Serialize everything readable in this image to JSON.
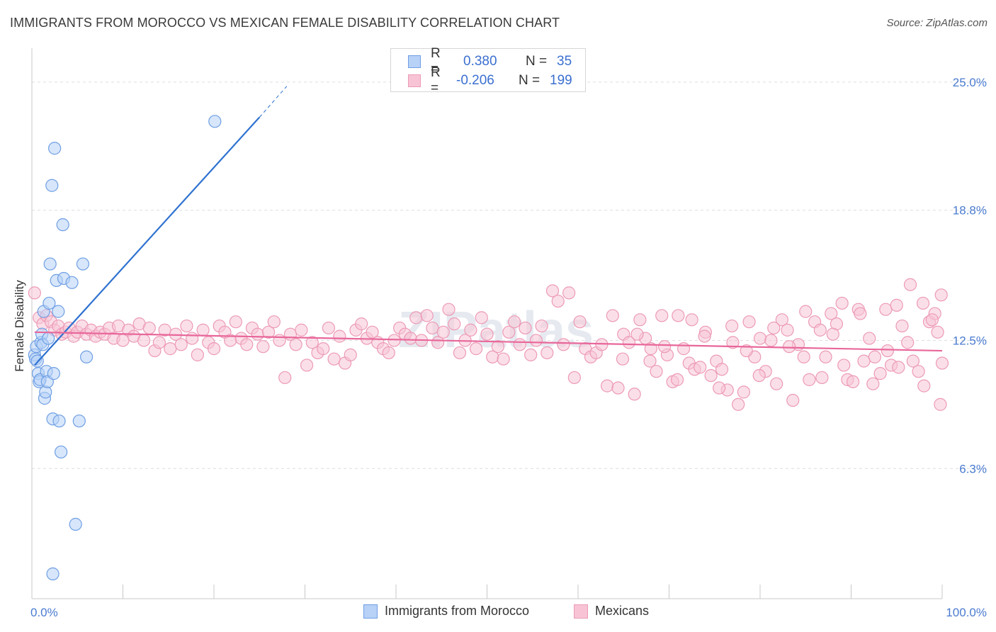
{
  "title": "IMMIGRANTS FROM MOROCCO VS MEXICAN FEMALE DISABILITY CORRELATION CHART",
  "source": "Source: ZipAtlas.com",
  "watermark": "ZIPatlas",
  "legend": {
    "rows": [
      {
        "r_label": "R =",
        "r_value": "0.380",
        "n_label": "N =",
        "n_value": "35"
      },
      {
        "r_label": "R =",
        "r_value": "-0.206",
        "n_label": "N =",
        "n_value": "199"
      }
    ]
  },
  "bottom_legend": {
    "series1": "Immigrants from Morocco",
    "series2": "Mexicans"
  },
  "colors": {
    "blue_fill": "#b7d1f7",
    "blue_stroke": "#6f9fe3",
    "blue_line": "#2f72d0",
    "pink_fill": "#f8c4d5",
    "pink_stroke": "#ec9ab6",
    "pink_line": "#e8679a",
    "tick_text": "#4a7bd0",
    "grid": "#dedede"
  },
  "chart_data": {
    "type": "scatter",
    "title": "IMMIGRANTS FROM MOROCCO VS MEXICAN FEMALE DISABILITY CORRELATION CHART",
    "xlabel": "",
    "ylabel": "Female Disability",
    "xlim": [
      0,
      100
    ],
    "ylim": [
      0,
      26.3
    ],
    "y_ticks": [
      6.3,
      12.5,
      18.8,
      25.0
    ],
    "y_tick_labels": [
      "6.3%",
      "12.5%",
      "18.8%",
      "25.0%"
    ],
    "x_tick_labels": [
      "0.0%",
      "100.0%"
    ],
    "grid": true,
    "series": [
      {
        "name": "Immigrants from Morocco",
        "R": 0.38,
        "N": 35,
        "trend": {
          "x0": 0.3,
          "y0": 11.3,
          "x1": 25.0,
          "y1": 23.3,
          "dash_to_x": 28.0,
          "dash_to_y": 24.8
        },
        "points": [
          [
            0.3,
            11.8
          ],
          [
            0.4,
            11.6
          ],
          [
            0.5,
            12.2
          ],
          [
            0.6,
            11.5
          ],
          [
            0.7,
            10.9
          ],
          [
            0.8,
            10.5
          ],
          [
            0.9,
            10.6
          ],
          [
            1.0,
            12.4
          ],
          [
            1.1,
            12.8
          ],
          [
            1.2,
            12.3
          ],
          [
            1.3,
            13.9
          ],
          [
            1.4,
            9.7
          ],
          [
            1.5,
            10.0
          ],
          [
            1.6,
            11.0
          ],
          [
            1.7,
            10.5
          ],
          [
            1.8,
            12.6
          ],
          [
            1.9,
            14.3
          ],
          [
            2.0,
            16.2
          ],
          [
            2.2,
            20.0
          ],
          [
            2.3,
            8.7
          ],
          [
            2.4,
            10.9
          ],
          [
            2.5,
            21.8
          ],
          [
            2.7,
            15.4
          ],
          [
            2.9,
            13.9
          ],
          [
            3.0,
            8.6
          ],
          [
            3.2,
            7.1
          ],
          [
            3.4,
            18.1
          ],
          [
            3.5,
            15.5
          ],
          [
            4.4,
            15.3
          ],
          [
            4.8,
            3.6
          ],
          [
            5.2,
            8.6
          ],
          [
            5.6,
            16.2
          ],
          [
            6.0,
            11.7
          ],
          [
            2.3,
            1.2
          ],
          [
            20.1,
            23.1
          ]
        ]
      },
      {
        "name": "Mexicans",
        "R": -0.206,
        "N": 199,
        "trend": {
          "x0": 0.3,
          "y0": 12.9,
          "x1": 100,
          "y1": 12.0
        },
        "points": [
          [
            0.3,
            14.8
          ],
          [
            0.8,
            13.6
          ],
          [
            1.2,
            13.3
          ],
          [
            1.6,
            13.7
          ],
          [
            2.1,
            13.4
          ],
          [
            2.5,
            13.0
          ],
          [
            2.9,
            13.2
          ],
          [
            3.3,
            12.8
          ],
          [
            3.7,
            12.9
          ],
          [
            4.1,
            13.1
          ],
          [
            4.6,
            12.7
          ],
          [
            5.0,
            12.9
          ],
          [
            5.5,
            13.2
          ],
          [
            6.0,
            12.8
          ],
          [
            6.5,
            13.0
          ],
          [
            7.0,
            12.7
          ],
          [
            7.5,
            12.9
          ],
          [
            8.0,
            12.8
          ],
          [
            8.5,
            13.1
          ],
          [
            9.0,
            12.6
          ],
          [
            9.5,
            13.2
          ],
          [
            10.0,
            12.5
          ],
          [
            10.6,
            13.0
          ],
          [
            11.2,
            12.7
          ],
          [
            11.8,
            13.3
          ],
          [
            12.3,
            12.5
          ],
          [
            12.9,
            13.1
          ],
          [
            13.5,
            12.0
          ],
          [
            14.0,
            12.4
          ],
          [
            14.6,
            13.0
          ],
          [
            15.2,
            12.1
          ],
          [
            15.8,
            12.8
          ],
          [
            16.4,
            12.3
          ],
          [
            17.0,
            13.2
          ],
          [
            17.6,
            12.6
          ],
          [
            18.2,
            11.8
          ],
          [
            18.8,
            13.0
          ],
          [
            19.4,
            12.4
          ],
          [
            20.0,
            12.1
          ],
          [
            20.6,
            13.2
          ],
          [
            21.2,
            12.9
          ],
          [
            21.8,
            12.5
          ],
          [
            22.4,
            13.4
          ],
          [
            23.0,
            12.6
          ],
          [
            23.6,
            12.3
          ],
          [
            24.2,
            13.1
          ],
          [
            24.8,
            12.8
          ],
          [
            25.4,
            12.2
          ],
          [
            26.0,
            12.9
          ],
          [
            26.6,
            13.4
          ],
          [
            27.2,
            12.5
          ],
          [
            27.8,
            10.7
          ],
          [
            28.4,
            12.8
          ],
          [
            29.0,
            12.3
          ],
          [
            29.6,
            13.0
          ],
          [
            30.2,
            11.3
          ],
          [
            30.8,
            12.4
          ],
          [
            31.4,
            11.9
          ],
          [
            32.0,
            12.1
          ],
          [
            32.6,
            13.1
          ],
          [
            33.2,
            11.6
          ],
          [
            33.8,
            12.7
          ],
          [
            34.4,
            11.4
          ],
          [
            35.0,
            11.8
          ],
          [
            35.6,
            13.0
          ],
          [
            36.2,
            13.3
          ],
          [
            36.8,
            12.6
          ],
          [
            37.4,
            12.9
          ],
          [
            38.0,
            12.4
          ],
          [
            38.6,
            12.1
          ],
          [
            39.2,
            11.9
          ],
          [
            39.8,
            12.5
          ],
          [
            40.4,
            13.1
          ],
          [
            41.0,
            12.8
          ],
          [
            41.6,
            12.6
          ],
          [
            42.2,
            13.6
          ],
          [
            42.8,
            12.5
          ],
          [
            43.4,
            13.7
          ],
          [
            44.0,
            13.1
          ],
          [
            44.6,
            12.4
          ],
          [
            45.2,
            12.9
          ],
          [
            45.8,
            14.0
          ],
          [
            46.4,
            13.3
          ],
          [
            47.0,
            11.9
          ],
          [
            47.6,
            12.5
          ],
          [
            48.2,
            13.0
          ],
          [
            48.8,
            12.1
          ],
          [
            49.4,
            13.6
          ],
          [
            50.0,
            12.8
          ],
          [
            50.6,
            11.7
          ],
          [
            51.2,
            12.2
          ],
          [
            51.8,
            11.6
          ],
          [
            52.4,
            12.9
          ],
          [
            53.0,
            13.4
          ],
          [
            53.6,
            12.3
          ],
          [
            54.2,
            13.1
          ],
          [
            54.8,
            11.8
          ],
          [
            55.4,
            12.5
          ],
          [
            56.0,
            13.2
          ],
          [
            56.6,
            11.9
          ],
          [
            57.2,
            14.9
          ],
          [
            57.8,
            14.4
          ],
          [
            58.4,
            12.3
          ],
          [
            59.0,
            14.8
          ],
          [
            59.6,
            10.7
          ],
          [
            60.2,
            13.4
          ],
          [
            60.8,
            12.1
          ],
          [
            61.4,
            11.7
          ],
          [
            62.0,
            11.9
          ],
          [
            62.6,
            12.3
          ],
          [
            63.2,
            10.3
          ],
          [
            63.8,
            13.7
          ],
          [
            64.4,
            10.2
          ],
          [
            65.0,
            12.8
          ],
          [
            65.6,
            12.4
          ],
          [
            66.2,
            9.9
          ],
          [
            66.8,
            13.5
          ],
          [
            67.4,
            12.6
          ],
          [
            68.0,
            12.1
          ],
          [
            68.6,
            11.0
          ],
          [
            69.2,
            13.7
          ],
          [
            69.8,
            11.8
          ],
          [
            70.4,
            10.5
          ],
          [
            71.0,
            13.7
          ],
          [
            71.6,
            12.1
          ],
          [
            72.2,
            11.4
          ],
          [
            72.8,
            11.1
          ],
          [
            73.4,
            11.2
          ],
          [
            74.0,
            12.9
          ],
          [
            74.6,
            10.8
          ],
          [
            75.2,
            11.5
          ],
          [
            75.8,
            11.1
          ],
          [
            76.4,
            10.1
          ],
          [
            77.0,
            12.4
          ],
          [
            77.6,
            9.4
          ],
          [
            78.2,
            10.0
          ],
          [
            78.8,
            13.4
          ],
          [
            79.4,
            11.7
          ],
          [
            80.0,
            12.6
          ],
          [
            80.6,
            11.0
          ],
          [
            81.2,
            12.5
          ],
          [
            81.8,
            10.4
          ],
          [
            82.4,
            13.5
          ],
          [
            83.0,
            13.0
          ],
          [
            83.6,
            9.6
          ],
          [
            84.2,
            12.3
          ],
          [
            84.8,
            11.7
          ],
          [
            85.4,
            10.6
          ],
          [
            86.0,
            13.4
          ],
          [
            86.6,
            13.0
          ],
          [
            87.2,
            11.7
          ],
          [
            87.8,
            13.8
          ],
          [
            88.4,
            13.3
          ],
          [
            89.0,
            14.3
          ],
          [
            89.6,
            10.6
          ],
          [
            90.2,
            10.5
          ],
          [
            90.8,
            14.0
          ],
          [
            91.4,
            11.5
          ],
          [
            92.0,
            12.6
          ],
          [
            92.6,
            11.7
          ],
          [
            93.2,
            10.9
          ],
          [
            93.8,
            14.0
          ],
          [
            94.4,
            11.3
          ],
          [
            95.0,
            14.2
          ],
          [
            95.6,
            13.2
          ],
          [
            96.2,
            12.4
          ],
          [
            96.8,
            11.5
          ],
          [
            97.4,
            11.0
          ],
          [
            98.0,
            10.3
          ],
          [
            98.6,
            13.4
          ],
          [
            99.2,
            13.8
          ],
          [
            99.8,
            9.4
          ],
          [
            100.0,
            11.4
          ],
          [
            96.5,
            15.2
          ],
          [
            97.9,
            14.3
          ],
          [
            98.9,
            13.5
          ],
          [
            99.5,
            12.9
          ],
          [
            99.9,
            14.7
          ],
          [
            95.2,
            11.2
          ],
          [
            94.0,
            12.0
          ],
          [
            92.4,
            10.4
          ],
          [
            91.0,
            13.8
          ],
          [
            89.2,
            11.3
          ],
          [
            88.0,
            12.8
          ],
          [
            86.8,
            10.7
          ],
          [
            85.0,
            13.9
          ],
          [
            83.2,
            12.2
          ],
          [
            81.5,
            13.1
          ],
          [
            79.9,
            10.8
          ],
          [
            78.5,
            12.0
          ],
          [
            76.9,
            13.2
          ],
          [
            75.5,
            10.2
          ],
          [
            73.9,
            12.7
          ],
          [
            72.5,
            13.5
          ],
          [
            70.9,
            10.6
          ],
          [
            69.5,
            12.2
          ],
          [
            67.9,
            11.5
          ],
          [
            66.5,
            12.8
          ],
          [
            64.9,
            11.6
          ]
        ]
      }
    ]
  }
}
